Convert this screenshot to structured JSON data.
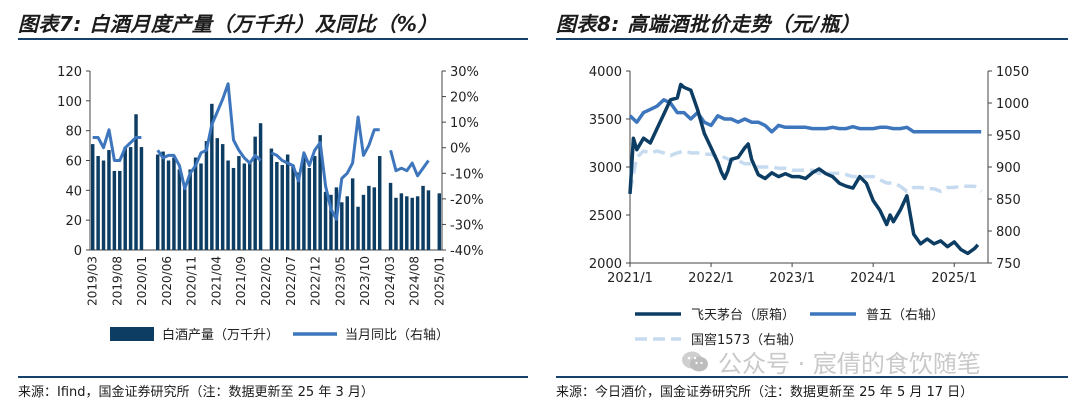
{
  "left_panel": {
    "title": "图表7: 白酒月度产量（万千升）及同比（%）",
    "source": "来源：Ifind，国金证券研究所（注：数据更新至 25 年 3 月）"
  },
  "right_panel": {
    "title": "图表8: 高端酒批价走势（元/瓶）",
    "source": "来源：今日酒价，国金证券研究所（注：数据更新至 25 年 5 月 17 日）"
  },
  "watermark": {
    "text": "公众号 · 宸倩的食饮随笔",
    "icon": "wechat-icon",
    "color": "#c9c9c9"
  },
  "chart_data": [
    {
      "type": "bar",
      "title": "",
      "x_tick_labels": [
        "2019/03",
        "2019/08",
        "2020/01",
        "2020/06",
        "2020/11",
        "2021/04",
        "2021/09",
        "2022/02",
        "2022/07",
        "2022/12",
        "2023/05",
        "2023/10",
        "2024/03",
        "2024/08",
        "2025/01"
      ],
      "ylim": [
        0,
        120
      ],
      "y_ticks": [
        "0",
        "20",
        "40",
        "60",
        "80",
        "100",
        "120"
      ],
      "y2lim": [
        -40,
        30
      ],
      "y2_ticks": [
        "-40%",
        "-30%",
        "-20%",
        "-10%",
        "0%",
        "10%",
        "20%",
        "30%"
      ],
      "legend_position": "bottom",
      "series": [
        {
          "name": "白酒产量（万千升）",
          "type": "bar",
          "axis": "left",
          "color": "#0d3d63",
          "values": [
            71,
            63,
            60,
            67,
            53,
            53,
            69,
            69,
            91,
            69,
            null,
            null,
            64,
            66,
            60,
            62,
            54,
            44,
            54,
            62,
            58,
            73,
            98,
            75,
            71,
            60,
            55,
            63,
            58,
            59,
            76,
            85,
            null,
            68,
            59,
            57,
            64,
            57,
            52,
            64,
            55,
            63,
            77,
            39,
            37,
            42,
            32,
            36,
            48,
            29,
            37,
            43,
            42,
            63,
            null,
            45,
            35,
            38,
            36,
            35,
            36,
            43,
            40,
            null,
            38
          ]
        },
        {
          "name": "当月同比（右轴）",
          "type": "line",
          "axis": "right",
          "color": "#3d76bc",
          "values": [
            4,
            4,
            0,
            7,
            -5,
            -5,
            0,
            2,
            4,
            4,
            null,
            null,
            -1,
            -4,
            -3,
            -3,
            -7,
            -16,
            -10,
            -7,
            -2,
            -1,
            9,
            14,
            19,
            25,
            3,
            -1,
            -4,
            -6,
            -3,
            -5,
            null,
            -2,
            -3,
            -5,
            -6,
            -7,
            -13,
            -2,
            -7,
            -1,
            2,
            -15,
            -24,
            -28,
            -12,
            -10,
            -6,
            12,
            -3,
            1,
            7,
            7,
            null,
            -1,
            -9,
            -8,
            -9,
            -6,
            -11,
            -8,
            -5,
            null,
            2
          ]
        }
      ]
    },
    {
      "type": "line",
      "title": "",
      "x_tick_labels": [
        "2021/1",
        "2022/1",
        "2023/1",
        "2024/1",
        "2025/1"
      ],
      "x_start": "2021-01",
      "ylim": [
        2000,
        4000
      ],
      "y_ticks": [
        "2000",
        "2500",
        "3000",
        "3500",
        "4000"
      ],
      "y2lim": [
        750,
        1050
      ],
      "y2_ticks": [
        "750",
        "800",
        "850",
        "900",
        "950",
        "1000",
        "1050"
      ],
      "legend_position": "bottom",
      "series": [
        {
          "name": "飞天茅台（原箱）",
          "axis": "left",
          "color": "#0d3d63",
          "style": "solid",
          "points": [
            [
              0,
              2720
            ],
            [
              0.5,
              3300
            ],
            [
              1,
              3180
            ],
            [
              2,
              3300
            ],
            [
              3,
              3250
            ],
            [
              4,
              3400
            ],
            [
              5,
              3550
            ],
            [
              6,
              3700
            ],
            [
              7,
              3720
            ],
            [
              7.5,
              3860
            ],
            [
              8,
              3830
            ],
            [
              9,
              3800
            ],
            [
              10,
              3600
            ],
            [
              11,
              3350
            ],
            [
              12,
              3200
            ],
            [
              13,
              3050
            ],
            [
              13.5,
              2950
            ],
            [
              14,
              2880
            ],
            [
              14.5,
              2960
            ],
            [
              15,
              3080
            ],
            [
              16,
              3100
            ],
            [
              17,
              3200
            ],
            [
              17.5,
              3240
            ],
            [
              18,
              3080
            ],
            [
              19,
              2920
            ],
            [
              20,
              2880
            ],
            [
              21,
              2940
            ],
            [
              22,
              2900
            ],
            [
              23,
              2930
            ],
            [
              24,
              2900
            ],
            [
              25,
              2900
            ],
            [
              26,
              2880
            ],
            [
              27,
              2940
            ],
            [
              28,
              2980
            ],
            [
              29,
              2930
            ],
            [
              30,
              2900
            ],
            [
              31,
              2830
            ],
            [
              32,
              2800
            ],
            [
              33,
              2780
            ],
            [
              34,
              2900
            ],
            [
              35,
              2830
            ],
            [
              36,
              2650
            ],
            [
              37,
              2550
            ],
            [
              38,
              2400
            ],
            [
              38.5,
              2500
            ],
            [
              39,
              2430
            ],
            [
              40,
              2550
            ],
            [
              41,
              2700
            ],
            [
              42,
              2300
            ],
            [
              43,
              2200
            ],
            [
              44,
              2250
            ],
            [
              45,
              2200
            ],
            [
              46,
              2230
            ],
            [
              47,
              2170
            ],
            [
              48,
              2220
            ],
            [
              49,
              2140
            ],
            [
              50,
              2100
            ],
            [
              51,
              2150
            ],
            [
              51.5,
              2190
            ]
          ]
        },
        {
          "name": "普五（右轴）",
          "axis": "right",
          "color": "#3d76bc",
          "style": "solid",
          "points": [
            [
              0,
              980
            ],
            [
              1,
              970
            ],
            [
              2,
              985
            ],
            [
              3,
              990
            ],
            [
              4,
              995
            ],
            [
              5,
              1005
            ],
            [
              6,
              1000
            ],
            [
              7,
              985
            ],
            [
              8,
              985
            ],
            [
              9,
              975
            ],
            [
              10,
              985
            ],
            [
              11,
              970
            ],
            [
              12,
              965
            ],
            [
              13,
              980
            ],
            [
              14,
              975
            ],
            [
              15,
              975
            ],
            [
              16,
              970
            ],
            [
              17,
              975
            ],
            [
              18,
              970
            ],
            [
              19,
              970
            ],
            [
              20,
              965
            ],
            [
              21,
              955
            ],
            [
              22,
              965
            ],
            [
              23,
              962
            ],
            [
              24,
              962
            ],
            [
              25,
              962
            ],
            [
              26,
              962
            ],
            [
              27,
              960
            ],
            [
              28,
              960
            ],
            [
              29,
              960
            ],
            [
              30,
              962
            ],
            [
              31,
              960
            ],
            [
              32,
              960
            ],
            [
              33,
              963
            ],
            [
              34,
              960
            ],
            [
              35,
              960
            ],
            [
              36,
              960
            ],
            [
              37,
              962
            ],
            [
              38,
              962
            ],
            [
              39,
              960
            ],
            [
              40,
              960
            ],
            [
              41,
              962
            ],
            [
              42,
              955
            ],
            [
              43,
              955
            ],
            [
              44,
              955
            ],
            [
              45,
              955
            ],
            [
              46,
              955
            ],
            [
              47,
              955
            ],
            [
              48,
              955
            ],
            [
              49,
              955
            ],
            [
              50,
              955
            ],
            [
              51,
              955
            ],
            [
              52,
              955
            ]
          ]
        },
        {
          "name": "国窖1573（右轴）",
          "axis": "right",
          "color": "#c6dbf0",
          "style": "dashed",
          "points": [
            [
              0,
              862
            ],
            [
              1,
              915
            ],
            [
              2,
              925
            ],
            [
              3,
              922
            ],
            [
              4,
              925
            ],
            [
              5,
              922
            ],
            [
              6,
              918
            ],
            [
              7,
              922
            ],
            [
              8,
              925
            ],
            [
              9,
              922
            ],
            [
              10,
              922
            ],
            [
              11,
              920
            ],
            [
              12,
              920
            ],
            [
              13,
              915
            ],
            [
              14,
              915
            ],
            [
              15,
              910
            ],
            [
              16,
              910
            ],
            [
              17,
              905
            ],
            [
              18,
              905
            ],
            [
              19,
              900
            ],
            [
              20,
              900
            ],
            [
              21,
              900
            ],
            [
              22,
              898
            ],
            [
              23,
              898
            ],
            [
              24,
              895
            ],
            [
              25,
              895
            ],
            [
              26,
              895
            ],
            [
              27,
              895
            ],
            [
              28,
              890
            ],
            [
              29,
              890
            ],
            [
              30,
              890
            ],
            [
              31,
              890
            ],
            [
              32,
              888
            ],
            [
              33,
              885
            ],
            [
              34,
              885
            ],
            [
              35,
              885
            ],
            [
              36,
              885
            ],
            [
              37,
              880
            ],
            [
              38,
              875
            ],
            [
              39,
              875
            ],
            [
              40,
              870
            ],
            [
              41,
              862
            ],
            [
              42,
              868
            ],
            [
              43,
              868
            ],
            [
              44,
              866
            ],
            [
              45,
              866
            ],
            [
              46,
              862
            ],
            [
              47,
              868
            ],
            [
              48,
              868
            ],
            [
              49,
              870
            ],
            [
              50,
              870
            ],
            [
              51,
              870
            ],
            [
              52,
              862
            ]
          ]
        }
      ]
    }
  ]
}
